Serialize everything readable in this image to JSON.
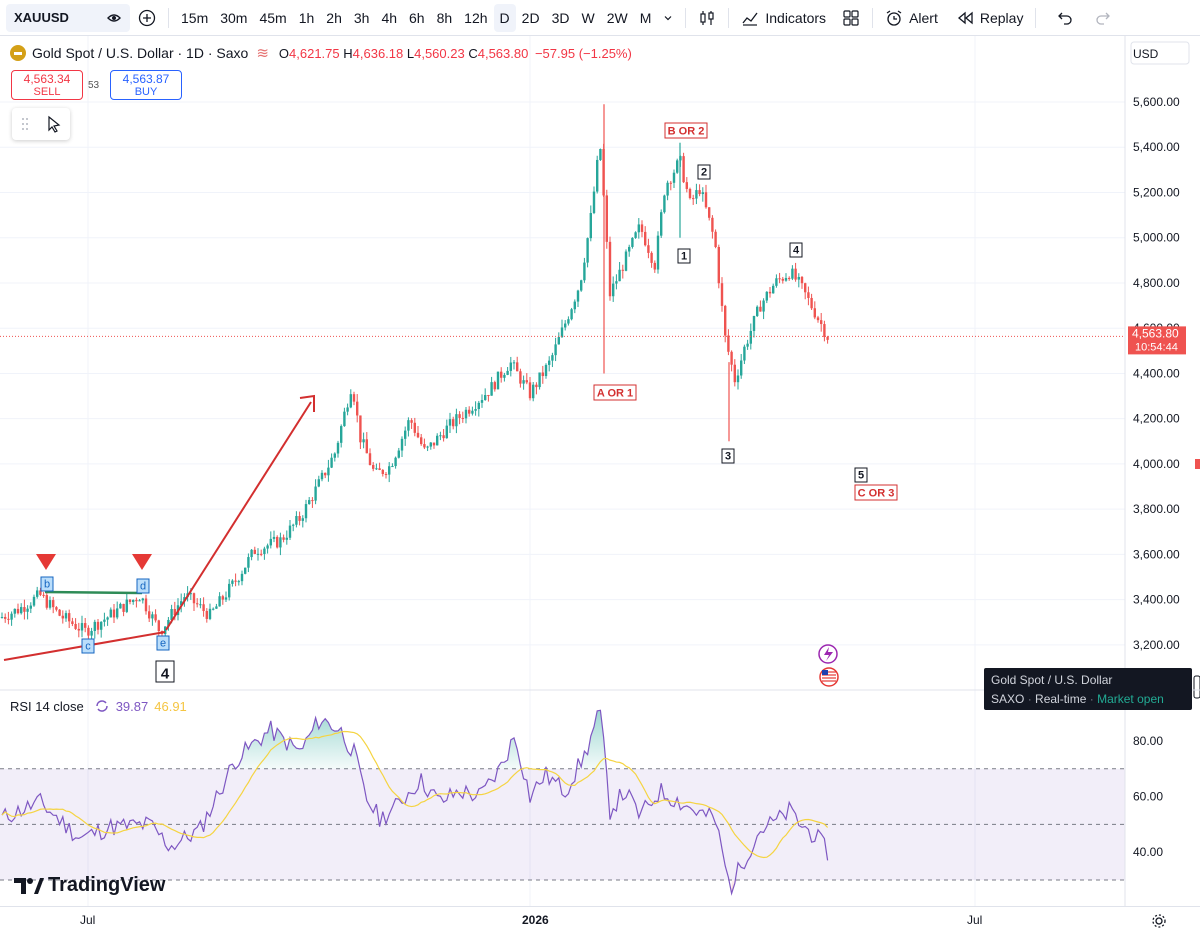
{
  "toolbar": {
    "symbol": "XAUUSD",
    "intervals": [
      "15m",
      "30m",
      "45m",
      "1h",
      "2h",
      "3h",
      "4h",
      "6h",
      "8h",
      "12h",
      "D",
      "2D",
      "3D",
      "W",
      "2W",
      "M"
    ],
    "active_interval": "D",
    "indicators_label": "Indicators",
    "alert_label": "Alert",
    "replay_label": "Replay"
  },
  "legend": {
    "title": "Gold Spot / U.S. Dollar · 1D · Saxo",
    "o_label": "O",
    "o": "4,621.75",
    "h_label": "H",
    "h": "4,636.18",
    "l_label": "L",
    "l": "4,560.23",
    "c_label": "C",
    "c": "4,563.80",
    "change": "−57.95 (−1.25%)"
  },
  "trade": {
    "sell_price": "4,563.34",
    "sell_label": "SELL",
    "buy_price": "4,563.87",
    "buy_label": "BUY",
    "spread": "53"
  },
  "price_axis": {
    "currency": "USD",
    "ticks": [
      "5,600.00",
      "5,400.00",
      "5,200.00",
      "5,000.00",
      "4,800.00",
      "4,600.00",
      "4,400.00",
      "4,200.00",
      "4,000.00",
      "3,800.00",
      "3,600.00",
      "3,400.00",
      "3,200.00"
    ],
    "last_price": "4,563.80",
    "countdown": "10:54:44"
  },
  "wave_labels": [
    "A OR 1",
    "B OR 2",
    "1",
    "2",
    "3",
    "4",
    "5",
    "C OR 3",
    "b",
    "c",
    "d",
    "e",
    "4"
  ],
  "rsi": {
    "label": "RSI 14 close",
    "value": "39.87",
    "ma_value": "46.91",
    "ticks": [
      "80.00",
      "60.00",
      "40.00"
    ]
  },
  "time_axis": [
    "Jul",
    "2026",
    "Jul"
  ],
  "tooltip": {
    "title": "Gold Spot / U.S. Dollar",
    "exchange": "SAXO",
    "feed": "Real-time",
    "status": "Market open"
  },
  "brand": "TradingView",
  "colors": {
    "up": "#26a69a",
    "down": "#ef5350",
    "rsi": "#7e57c2",
    "rsi_ma": "#f5d442",
    "wave_red": "#d32f2f",
    "accent": "#2962ff"
  },
  "chart_data": {
    "type": "candlestick",
    "title": "Gold Spot / U.S. Dollar · 1D · Saxo",
    "ylim": [
      3150,
      5700
    ],
    "approx_close_path": [
      [
        0,
        3320
      ],
      [
        20,
        3360
      ],
      [
        40,
        3420
      ],
      [
        60,
        3330
      ],
      [
        85,
        3260
      ],
      [
        110,
        3330
      ],
      [
        140,
        3420
      ],
      [
        160,
        3260
      ],
      [
        185,
        3420
      ],
      [
        210,
        3330
      ],
      [
        235,
        3480
      ],
      [
        255,
        3620
      ],
      [
        280,
        3660
      ],
      [
        300,
        3760
      ],
      [
        320,
        3920
      ],
      [
        335,
        4050
      ],
      [
        352,
        4360
      ],
      [
        360,
        4120
      ],
      [
        375,
        3950
      ],
      [
        390,
        3990
      ],
      [
        410,
        4200
      ],
      [
        425,
        4050
      ],
      [
        445,
        4150
      ],
      [
        470,
        4250
      ],
      [
        490,
        4330
      ],
      [
        510,
        4450
      ],
      [
        530,
        4310
      ],
      [
        550,
        4450
      ],
      [
        565,
        4620
      ],
      [
        580,
        4800
      ],
      [
        590,
        5060
      ],
      [
        600,
        5420
      ],
      [
        610,
        4750
      ],
      [
        625,
        4900
      ],
      [
        640,
        5050
      ],
      [
        655,
        4880
      ],
      [
        665,
        5230
      ],
      [
        680,
        5340
      ],
      [
        690,
        5150
      ],
      [
        700,
        5220
      ],
      [
        715,
        4980
      ],
      [
        725,
        4560
      ],
      [
        735,
        4370
      ],
      [
        745,
        4520
      ],
      [
        760,
        4700
      ],
      [
        775,
        4800
      ],
      [
        790,
        4850
      ],
      [
        800,
        4790
      ],
      [
        815,
        4670
      ],
      [
        828,
        4560
      ]
    ]
  }
}
